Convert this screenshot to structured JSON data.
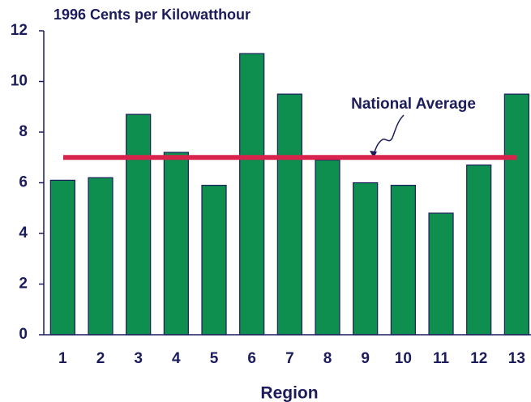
{
  "chart_data": {
    "type": "bar",
    "subtitle": "1996 Cents per Kilowatthour",
    "xlabel": "Region",
    "categories": [
      "1",
      "2",
      "3",
      "4",
      "5",
      "6",
      "7",
      "8",
      "9",
      "10",
      "11",
      "12",
      "13"
    ],
    "values": [
      6.1,
      6.2,
      8.7,
      7.2,
      5.9,
      11.1,
      9.5,
      6.9,
      6.0,
      5.9,
      4.8,
      6.7,
      9.5
    ],
    "color": "#0e8f4f",
    "ylim": [
      0,
      12
    ],
    "yticks": [
      0,
      2,
      4,
      6,
      8,
      10,
      12
    ],
    "reference_line": {
      "label": "National Average",
      "value": 7.0,
      "color": "#d8234c"
    }
  }
}
